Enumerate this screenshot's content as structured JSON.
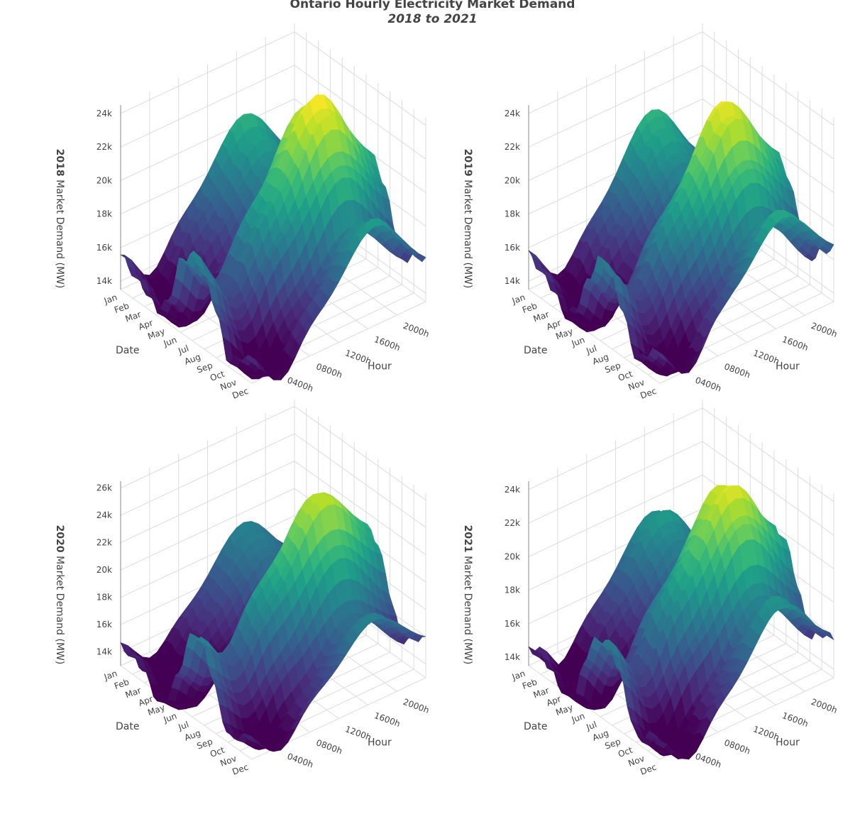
{
  "title": "Ontario Hourly Electricity Market Demand",
  "subtitle": "2018 to 2021",
  "chart_data": [
    {
      "type": "surface",
      "year": "2018",
      "zlabel_suffix": "Market Demand (MW)",
      "xlabel": "Date",
      "ylabel": "Hour",
      "date_ticks": [
        "Jan",
        "Feb",
        "Mar",
        "Apr",
        "May",
        "Jun",
        "Jul",
        "Aug",
        "Sep",
        "Oct",
        "Nov",
        "Dec"
      ],
      "hour_ticks": [
        "0400h",
        "0800h",
        "1200h",
        "1600h",
        "2000h"
      ],
      "z_ticks": [
        {
          "value": 14000,
          "label": "14k"
        },
        {
          "value": 16000,
          "label": "16k"
        },
        {
          "value": 18000,
          "label": "18k"
        },
        {
          "value": 20000,
          "label": "20k"
        },
        {
          "value": 22000,
          "label": "22k"
        },
        {
          "value": 24000,
          "label": "24k"
        }
      ],
      "zlim": [
        13500,
        24500
      ],
      "colorscale": "viridis",
      "monthly_peak_demand_mw": [
        20500,
        19800,
        19200,
        18200,
        19500,
        23500,
        24500,
        23800,
        21500,
        18000,
        19200,
        19500
      ]
    },
    {
      "type": "surface",
      "year": "2019",
      "zlabel_suffix": "Market Demand (MW)",
      "xlabel": "Date",
      "ylabel": "Hour",
      "date_ticks": [
        "Jan",
        "Feb",
        "Mar",
        "Apr",
        "May",
        "Jun",
        "Jul",
        "Aug",
        "Sep",
        "Oct",
        "Nov",
        "Dec"
      ],
      "hour_ticks": [
        "0400h",
        "0800h",
        "1200h",
        "1600h",
        "2000h"
      ],
      "z_ticks": [
        {
          "value": 14000,
          "label": "14k"
        },
        {
          "value": 16000,
          "label": "16k"
        },
        {
          "value": 18000,
          "label": "18k"
        },
        {
          "value": 20000,
          "label": "20k"
        },
        {
          "value": 22000,
          "label": "22k"
        },
        {
          "value": 24000,
          "label": "24k"
        }
      ],
      "zlim": [
        13500,
        24500
      ],
      "colorscale": "viridis",
      "monthly_peak_demand_mw": [
        20500,
        20000,
        19200,
        17800,
        19000,
        22000,
        24300,
        23500,
        21000,
        18200,
        19500,
        20200
      ]
    },
    {
      "type": "surface",
      "year": "2020",
      "zlabel_suffix": "Market Demand (MW)",
      "xlabel": "Date",
      "ylabel": "Hour",
      "date_ticks": [
        "Jan",
        "Feb",
        "Mar",
        "Apr",
        "May",
        "Jun",
        "Jul",
        "Aug",
        "Sep",
        "Oct",
        "Nov",
        "Dec"
      ],
      "hour_ticks": [
        "0400h",
        "0800h",
        "1200h",
        "1600h",
        "2000h"
      ],
      "z_ticks": [
        {
          "value": 14000,
          "label": "14k"
        },
        {
          "value": 16000,
          "label": "16k"
        },
        {
          "value": 18000,
          "label": "18k"
        },
        {
          "value": 20000,
          "label": "20k"
        },
        {
          "value": 22000,
          "label": "22k"
        },
        {
          "value": 24000,
          "label": "24k"
        },
        {
          "value": 26000,
          "label": "26k"
        }
      ],
      "zlim": [
        13000,
        26500
      ],
      "colorscale": "viridis",
      "monthly_peak_demand_mw": [
        19000,
        18800,
        18200,
        16200,
        17500,
        21000,
        25500,
        24800,
        21000,
        17500,
        18500,
        19200
      ]
    },
    {
      "type": "surface",
      "year": "2021",
      "zlabel_suffix": "Market Demand (MW)",
      "xlabel": "Date",
      "ylabel": "Hour",
      "date_ticks": [
        "Jan",
        "Feb",
        "Mar",
        "Apr",
        "May",
        "Jun",
        "Jul",
        "Aug",
        "Sep",
        "Oct",
        "Nov",
        "Dec"
      ],
      "hour_ticks": [
        "0400h",
        "0800h",
        "1200h",
        "1600h",
        "2000h"
      ],
      "z_ticks": [
        {
          "value": 14000,
          "label": "14k"
        },
        {
          "value": 16000,
          "label": "16k"
        },
        {
          "value": 18000,
          "label": "18k"
        },
        {
          "value": 20000,
          "label": "20k"
        },
        {
          "value": 22000,
          "label": "22k"
        },
        {
          "value": 24000,
          "label": "24k"
        }
      ],
      "zlim": [
        13500,
        24500
      ],
      "colorscale": "viridis",
      "monthly_peak_demand_mw": [
        19200,
        19500,
        18500,
        17500,
        18500,
        22500,
        24000,
        23800,
        21200,
        18000,
        19000,
        19200
      ]
    }
  ]
}
